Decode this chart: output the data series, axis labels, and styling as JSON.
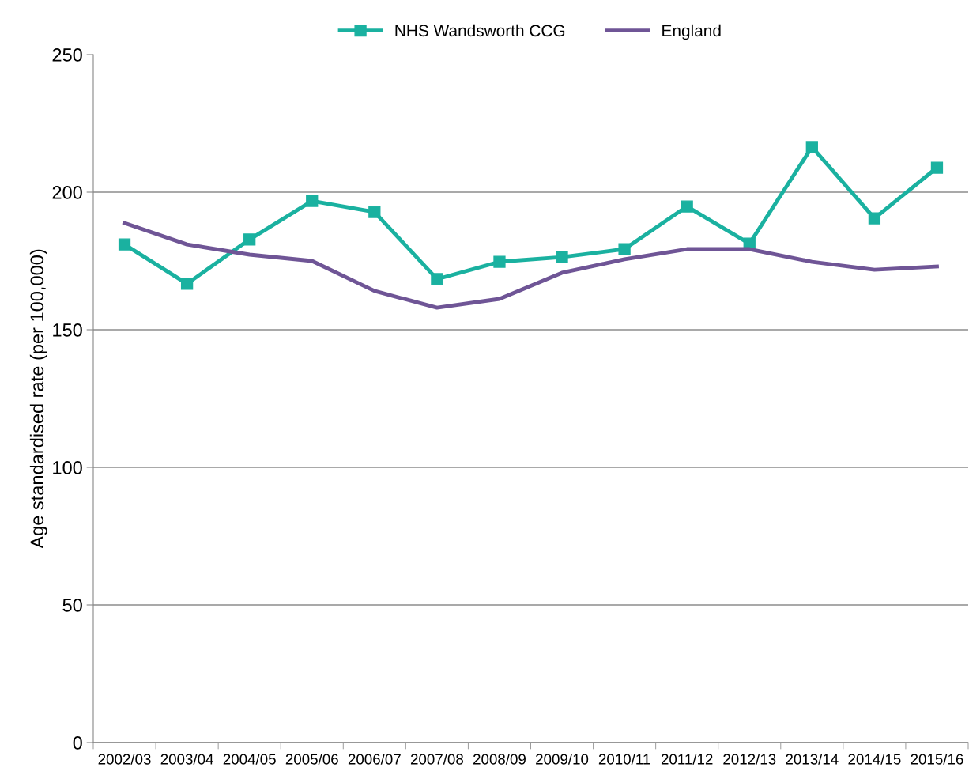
{
  "chart_data": {
    "type": "line",
    "ylabel": "Age standardised rate (per 100,000)",
    "categories": [
      "2002/03",
      "2003/04",
      "2004/05",
      "2005/06",
      "2006/07",
      "2007/08",
      "2008/09",
      "2009/10",
      "2010/11",
      "2011/12",
      "2012/13",
      "2013/14",
      "2014/15",
      "2015/16"
    ],
    "series": [
      {
        "name": "NHS Wandsworth CCG",
        "color": "#1ab1a0",
        "marker": "square",
        "values": [
          181.0,
          166.7,
          182.8,
          196.8,
          192.8,
          168.4,
          174.7,
          176.4,
          179.3,
          194.8,
          181.3,
          216.4,
          190.5,
          208.9
        ]
      },
      {
        "name": "England",
        "color": "#6f5596",
        "marker": "none",
        "values": [
          188.8,
          181.0,
          177.3,
          175.0,
          164.1,
          158.0,
          161.2,
          170.7,
          175.6,
          179.3,
          179.3,
          174.7,
          171.8,
          173.0
        ]
      }
    ],
    "ylim": [
      0,
      250
    ],
    "yticks": [
      0,
      50,
      100,
      150,
      200,
      250
    ],
    "grid": "y",
    "legend": "top",
    "line_style": "solid"
  }
}
